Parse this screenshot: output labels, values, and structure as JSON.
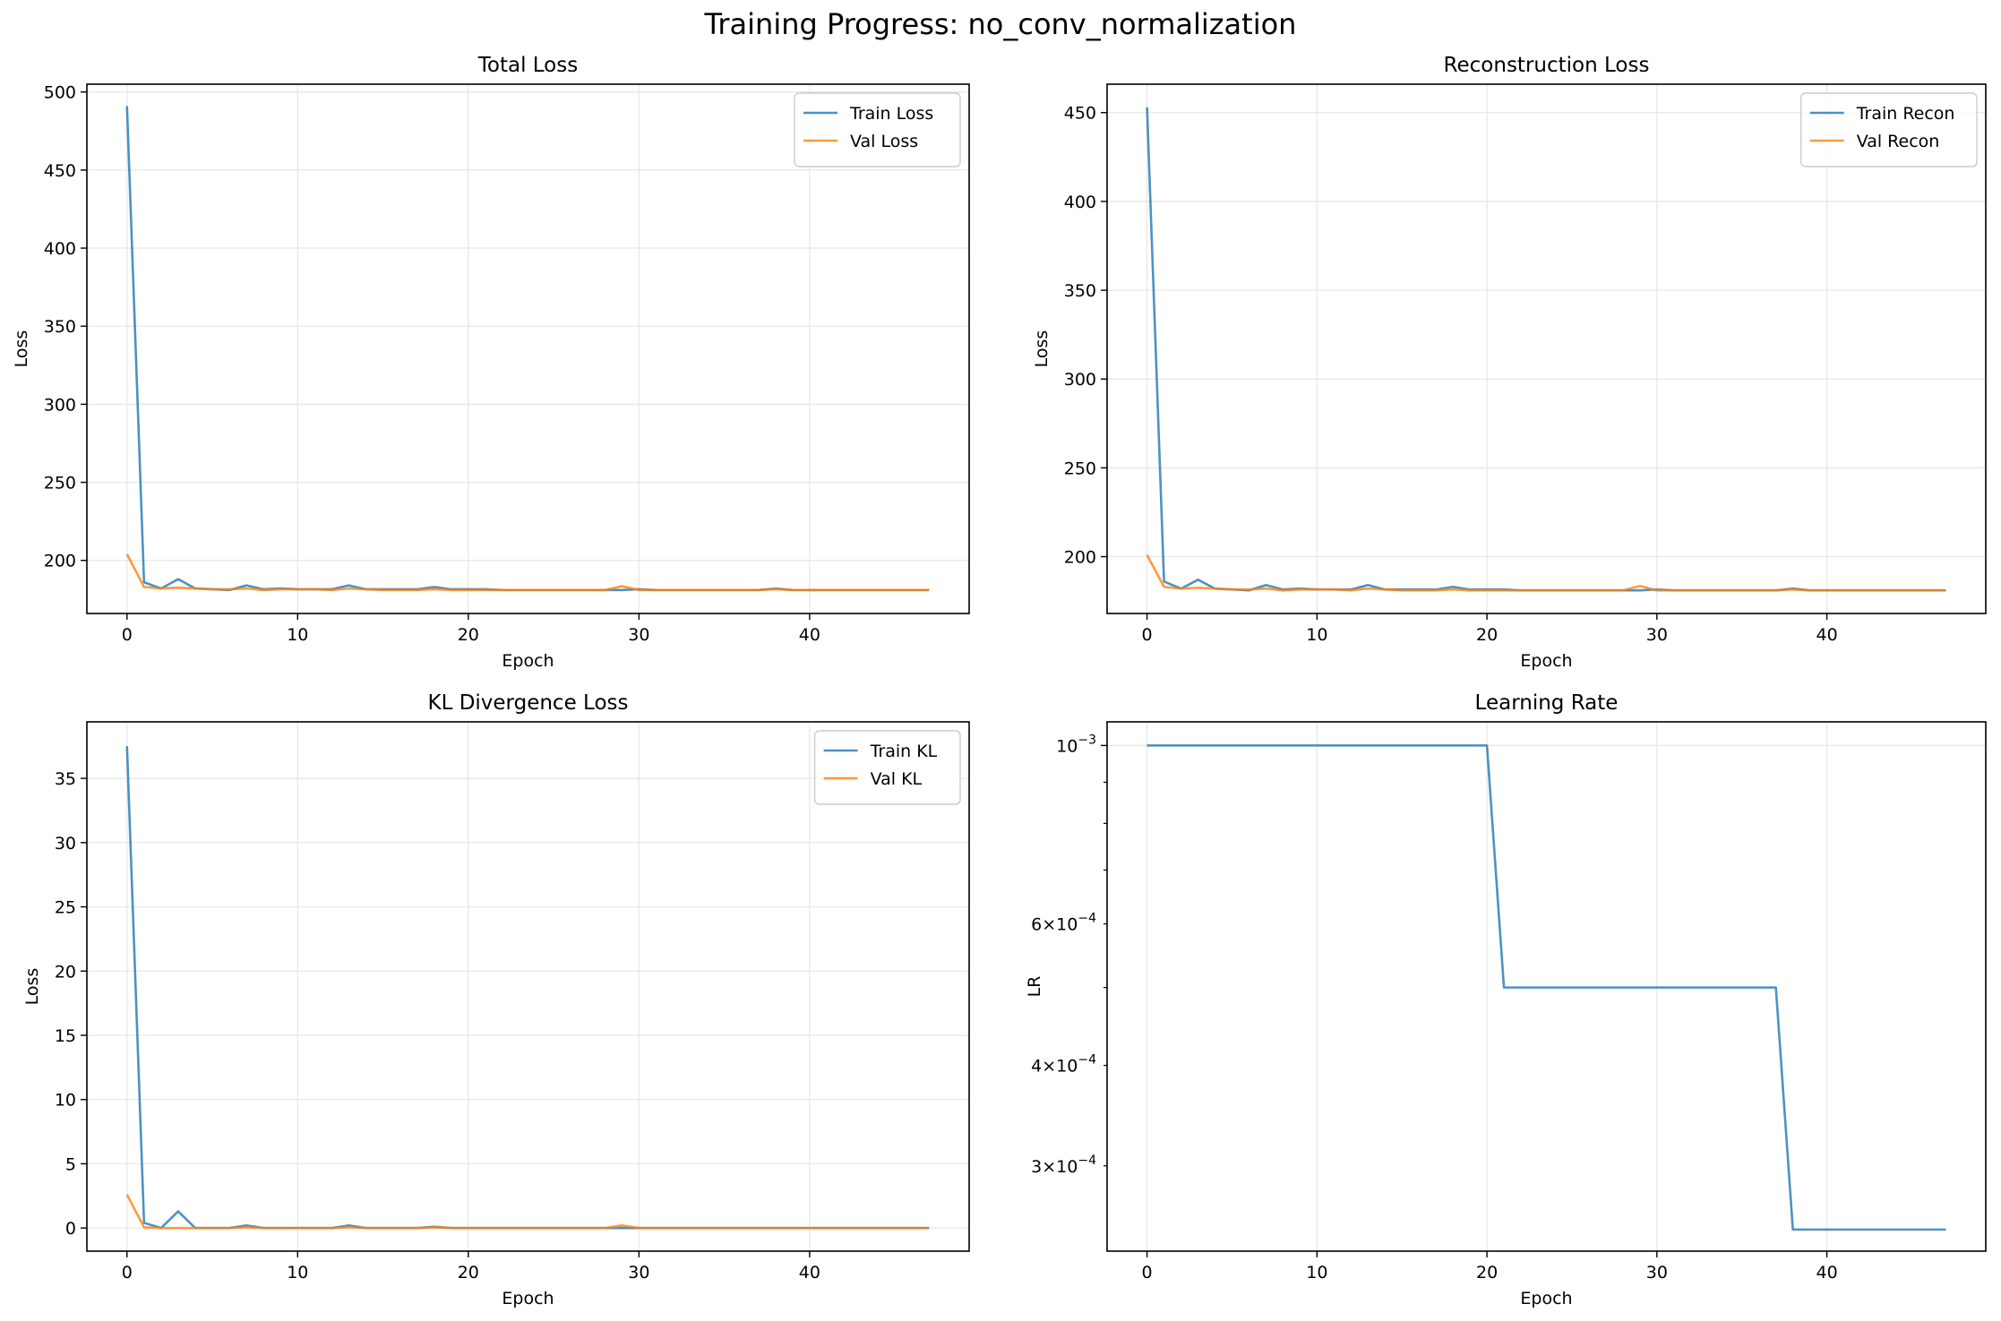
{
  "figure": {
    "suptitle": "Training Progress: no_conv_normalization"
  },
  "colors": {
    "train": "#1f77b4",
    "val": "#ff7f0e",
    "grid": "#e6e6e6",
    "axis": "#000000"
  },
  "chart_data": [
    {
      "type": "line",
      "title": "Total Loss",
      "xlabel": "Epoch",
      "ylabel": "Loss",
      "xlim": [
        -2.35,
        49.35
      ],
      "ylim": [
        166,
        505
      ],
      "yscale": "linear",
      "xticks": [
        0,
        10,
        20,
        30,
        40
      ],
      "xtick_labels": [
        "0",
        "10",
        "20",
        "30",
        "40"
      ],
      "yticks": [
        200,
        250,
        300,
        350,
        400,
        450,
        500
      ],
      "ytick_labels": [
        "200",
        "250",
        "300",
        "350",
        "400",
        "450",
        "500"
      ],
      "grid": true,
      "legend": "upper right",
      "x": [
        0,
        1,
        2,
        3,
        4,
        5,
        6,
        7,
        8,
        9,
        10,
        11,
        12,
        13,
        14,
        15,
        16,
        17,
        18,
        19,
        20,
        21,
        22,
        23,
        24,
        25,
        26,
        27,
        28,
        29,
        30,
        31,
        32,
        33,
        34,
        35,
        36,
        37,
        38,
        39,
        40,
        41,
        42,
        43,
        44,
        45,
        46,
        47
      ],
      "series": [
        {
          "name": "Train Loss",
          "color_key": "train",
          "values": [
            491,
            186,
            182,
            188,
            182,
            181.5,
            181,
            184,
            181.5,
            182,
            181.5,
            181.5,
            181.5,
            184,
            181.5,
            181.5,
            181.5,
            181.5,
            183,
            181.5,
            181.5,
            181.5,
            181,
            181,
            181,
            181,
            181,
            181,
            181,
            181,
            181.5,
            181,
            181,
            181,
            181,
            181,
            181,
            181,
            182,
            181,
            181,
            181,
            181,
            181,
            181,
            181,
            181,
            181
          ]
        },
        {
          "name": "Val Loss",
          "color_key": "val",
          "values": [
            204,
            183,
            182,
            182.5,
            182,
            181.5,
            181.5,
            182,
            181,
            181.5,
            181.5,
            181.5,
            181,
            182,
            181.5,
            181,
            181,
            181,
            181.5,
            181,
            181,
            181,
            181,
            181,
            181,
            181,
            181,
            181,
            181,
            183.5,
            181,
            181,
            181,
            181,
            181,
            181,
            181,
            181,
            181.5,
            181,
            181,
            181,
            181,
            181,
            181,
            181,
            181,
            181
          ]
        }
      ]
    },
    {
      "type": "line",
      "title": "Reconstruction Loss",
      "xlabel": "Epoch",
      "ylabel": "Loss",
      "xlim": [
        -2.35,
        49.35
      ],
      "ylim": [
        168,
        466
      ],
      "yscale": "linear",
      "xticks": [
        0,
        10,
        20,
        30,
        40
      ],
      "xtick_labels": [
        "0",
        "10",
        "20",
        "30",
        "40"
      ],
      "yticks": [
        200,
        250,
        300,
        350,
        400,
        450
      ],
      "ytick_labels": [
        "200",
        "250",
        "300",
        "350",
        "400",
        "450"
      ],
      "grid": true,
      "legend": "upper right",
      "x": [
        0,
        1,
        2,
        3,
        4,
        5,
        6,
        7,
        8,
        9,
        10,
        11,
        12,
        13,
        14,
        15,
        16,
        17,
        18,
        19,
        20,
        21,
        22,
        23,
        24,
        25,
        26,
        27,
        28,
        29,
        30,
        31,
        32,
        33,
        34,
        35,
        36,
        37,
        38,
        39,
        40,
        41,
        42,
        43,
        44,
        45,
        46,
        47
      ],
      "series": [
        {
          "name": "Train Recon",
          "color_key": "train",
          "values": [
            453,
            186,
            182,
            187,
            182,
            181.5,
            181,
            184,
            181.5,
            182,
            181.5,
            181.5,
            181.5,
            184,
            181.5,
            181.5,
            181.5,
            181.5,
            183,
            181.5,
            181.5,
            181.5,
            181,
            181,
            181,
            181,
            181,
            181,
            181,
            181,
            181.5,
            181,
            181,
            181,
            181,
            181,
            181,
            181,
            182,
            181,
            181,
            181,
            181,
            181,
            181,
            181,
            181,
            181
          ]
        },
        {
          "name": "Val Recon",
          "color_key": "val",
          "values": [
            201,
            183,
            182,
            182.5,
            182,
            181.5,
            181.5,
            182,
            181,
            181.5,
            181.5,
            181.5,
            181,
            182,
            181.5,
            181,
            181,
            181,
            181.5,
            181,
            181,
            181,
            181,
            181,
            181,
            181,
            181,
            181,
            181,
            183.5,
            181,
            181,
            181,
            181,
            181,
            181,
            181,
            181,
            181.5,
            181,
            181,
            181,
            181,
            181,
            181,
            181,
            181,
            181
          ]
        }
      ]
    },
    {
      "type": "line",
      "title": "KL Divergence Loss",
      "xlabel": "Epoch",
      "ylabel": "Loss",
      "xlim": [
        -2.35,
        49.35
      ],
      "ylim": [
        -1.8,
        39.4
      ],
      "yscale": "linear",
      "xticks": [
        0,
        10,
        20,
        30,
        40
      ],
      "xtick_labels": [
        "0",
        "10",
        "20",
        "30",
        "40"
      ],
      "yticks": [
        0,
        5,
        10,
        15,
        20,
        25,
        30,
        35
      ],
      "ytick_labels": [
        "0",
        "5",
        "10",
        "15",
        "20",
        "25",
        "30",
        "35"
      ],
      "grid": true,
      "legend": "upper right",
      "x": [
        0,
        1,
        2,
        3,
        4,
        5,
        6,
        7,
        8,
        9,
        10,
        11,
        12,
        13,
        14,
        15,
        16,
        17,
        18,
        19,
        20,
        21,
        22,
        23,
        24,
        25,
        26,
        27,
        28,
        29,
        30,
        31,
        32,
        33,
        34,
        35,
        36,
        37,
        38,
        39,
        40,
        41,
        42,
        43,
        44,
        45,
        46,
        47
      ],
      "series": [
        {
          "name": "Train KL",
          "color_key": "train",
          "values": [
            37.5,
            0.4,
            0,
            1.3,
            0,
            0,
            0,
            0.2,
            0,
            0,
            0,
            0,
            0,
            0.2,
            0,
            0,
            0,
            0,
            0.1,
            0,
            0,
            0,
            0,
            0,
            0,
            0,
            0,
            0,
            0,
            0,
            0,
            0,
            0,
            0,
            0,
            0,
            0,
            0,
            0,
            0,
            0,
            0,
            0,
            0,
            0,
            0,
            0,
            0
          ]
        },
        {
          "name": "Val KL",
          "color_key": "val",
          "values": [
            2.6,
            0.05,
            0,
            0,
            0,
            0,
            0,
            0.05,
            0,
            0,
            0,
            0,
            0,
            0.05,
            0,
            0,
            0,
            0,
            0.05,
            0,
            0,
            0,
            0,
            0,
            0,
            0,
            0,
            0,
            0,
            0.2,
            0,
            0,
            0,
            0,
            0,
            0,
            0,
            0,
            0,
            0,
            0,
            0,
            0,
            0,
            0,
            0,
            0,
            0
          ]
        }
      ]
    },
    {
      "type": "line",
      "title": "Learning Rate",
      "xlabel": "Epoch",
      "ylabel": "LR",
      "xlim": [
        -2.35,
        49.35
      ],
      "ylim": [
        0.000235,
        0.00107
      ],
      "yscale": "log",
      "xticks": [
        0,
        10,
        20,
        30,
        40
      ],
      "xtick_labels": [
        "0",
        "10",
        "20",
        "30",
        "40"
      ],
      "ytick_major": [
        0.001
      ],
      "ytick_major_labels": [
        {
          "base": "10",
          "exp": "−3"
        }
      ],
      "ytick_minor_labeled": [
        0.0006,
        0.0004,
        0.0003
      ],
      "ytick_minor_labels": [
        {
          "mant": "6",
          "base": "10",
          "exp": "−4"
        },
        {
          "mant": "4",
          "base": "10",
          "exp": "−4"
        },
        {
          "mant": "3",
          "base": "10",
          "exp": "−4"
        }
      ],
      "ytick_minor_unlabeled": [
        0.0007,
        0.0008,
        0.0009,
        0.0005
      ],
      "grid": true,
      "x": [
        0,
        1,
        2,
        3,
        4,
        5,
        6,
        7,
        8,
        9,
        10,
        11,
        12,
        13,
        14,
        15,
        16,
        17,
        18,
        19,
        20,
        21,
        22,
        23,
        24,
        25,
        26,
        27,
        28,
        29,
        30,
        31,
        32,
        33,
        34,
        35,
        36,
        37,
        38,
        39,
        40,
        41,
        42,
        43,
        44,
        45,
        46,
        47
      ],
      "series": [
        {
          "name": "",
          "color_key": "train",
          "values": [
            0.001,
            0.001,
            0.001,
            0.001,
            0.001,
            0.001,
            0.001,
            0.001,
            0.001,
            0.001,
            0.001,
            0.001,
            0.001,
            0.001,
            0.001,
            0.001,
            0.001,
            0.001,
            0.001,
            0.001,
            0.001,
            0.0005,
            0.0005,
            0.0005,
            0.0005,
            0.0005,
            0.0005,
            0.0005,
            0.0005,
            0.0005,
            0.0005,
            0.0005,
            0.0005,
            0.0005,
            0.0005,
            0.0005,
            0.0005,
            0.0005,
            0.00025,
            0.00025,
            0.00025,
            0.00025,
            0.00025,
            0.00025,
            0.00025,
            0.00025,
            0.00025,
            0.00025
          ]
        }
      ]
    }
  ]
}
